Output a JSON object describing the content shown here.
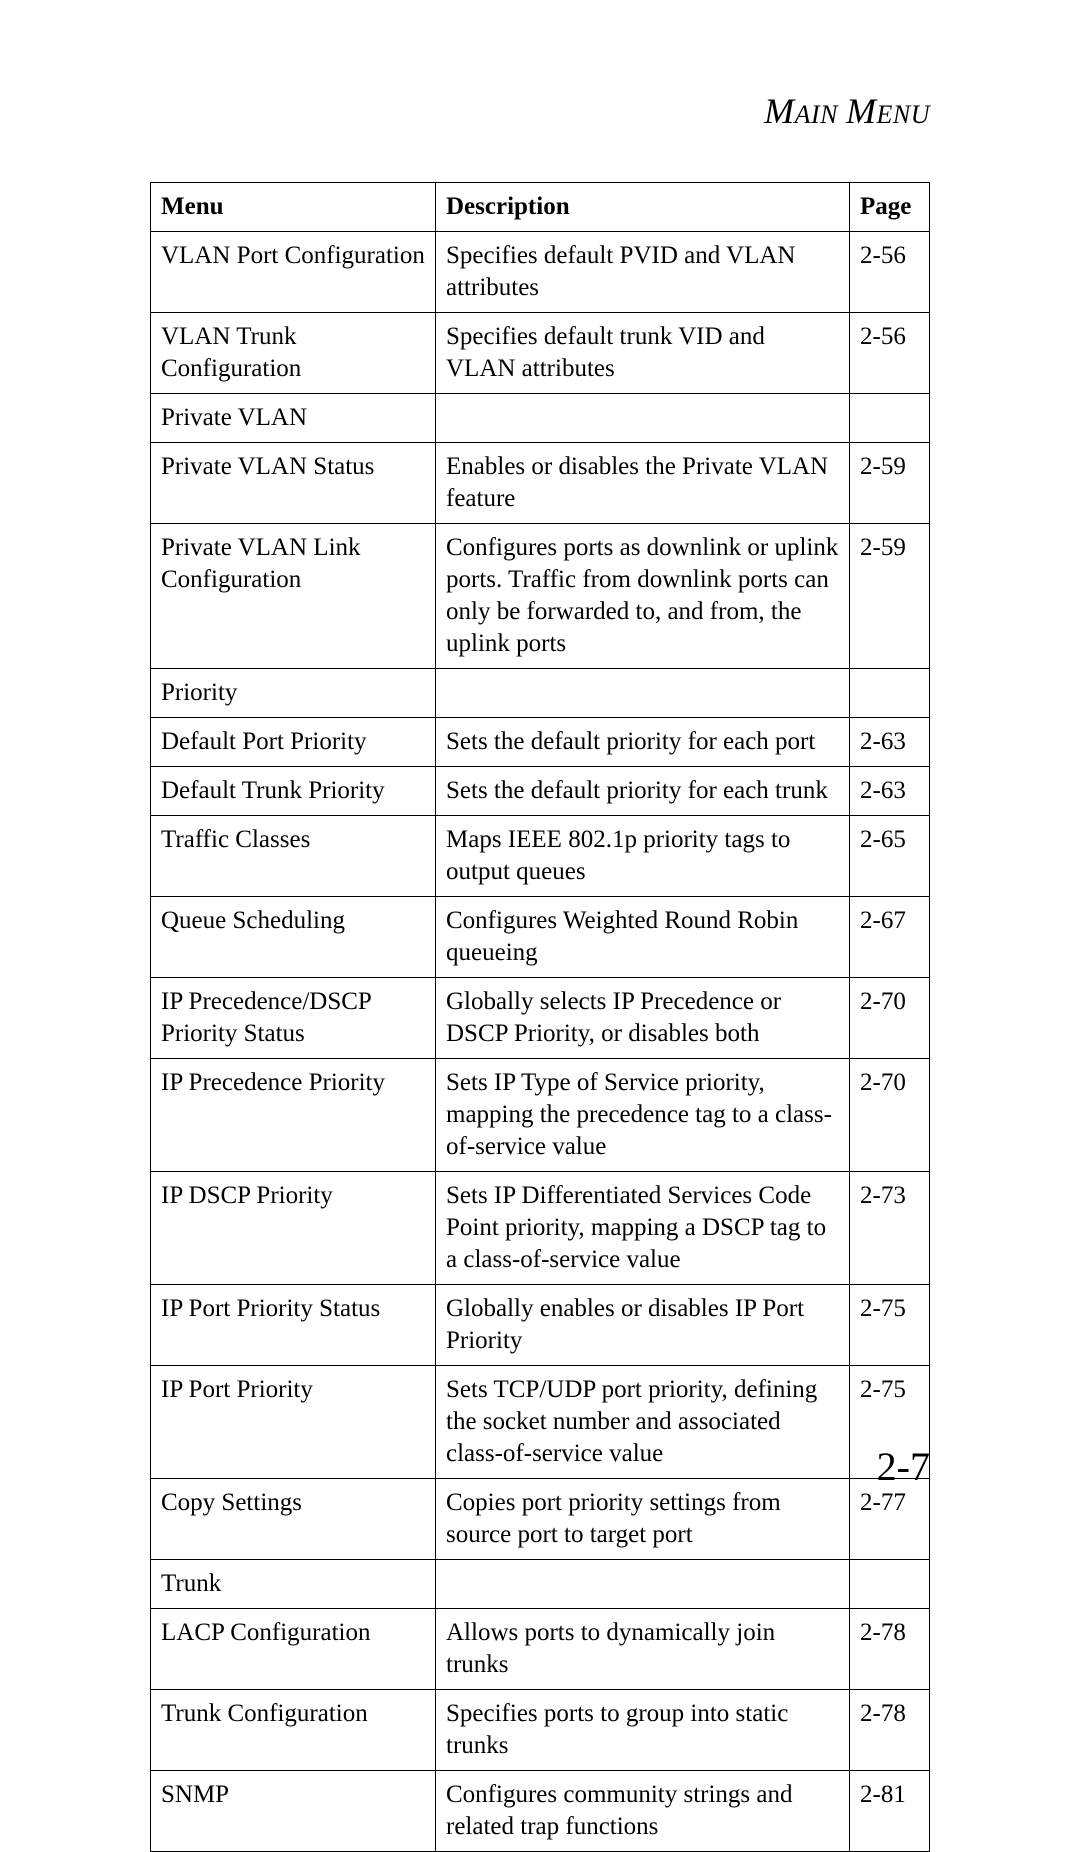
{
  "header_title_word1": "Main",
  "header_title_word2": "Menu",
  "footer_page": "2-7",
  "col_menu": "Menu",
  "col_desc": "Description",
  "col_page": "Page",
  "rows": [
    {
      "menu": "VLAN Port Configuration",
      "indent": 1,
      "desc": "Specifies default PVID and VLAN attributes",
      "page": "2-56"
    },
    {
      "menu": "VLAN Trunk Configuration",
      "indent": 1,
      "desc": "Specifies default trunk VID and VLAN attributes",
      "page": "2-56"
    },
    {
      "menu": "Private VLAN",
      "indent": 0,
      "desc": "",
      "page": ""
    },
    {
      "menu": "Private VLAN Status",
      "indent": 1,
      "desc": "Enables or disables the Private VLAN feature",
      "page": "2-59"
    },
    {
      "menu": "Private VLAN Link Configuration",
      "indent": 1,
      "desc": "Configures ports as downlink or uplink ports. Traffic from downlink ports can only be forwarded to, and from, the uplink ports",
      "page": "2-59"
    },
    {
      "menu": "Priority",
      "indent": 0,
      "desc": "",
      "page": ""
    },
    {
      "menu": "Default Port Priority",
      "indent": 1,
      "desc": "Sets the default priority for each port",
      "page": "2-63"
    },
    {
      "menu": "Default Trunk Priority",
      "indent": 1,
      "desc": "Sets the default priority for each trunk",
      "page": "2-63"
    },
    {
      "menu": "Traffic Classes",
      "indent": 1,
      "desc": "Maps IEEE 802.1p priority tags to output queues",
      "page": "2-65"
    },
    {
      "menu": "Queue Scheduling",
      "indent": 1,
      "desc": "Configures Weighted Round Robin queueing",
      "page": "2-67"
    },
    {
      "menu": "IP Precedence/DSCP Priority Status",
      "indent": 1,
      "desc": "Globally selects IP Precedence or DSCP Priority, or disables both",
      "page": "2-70"
    },
    {
      "menu": "IP Precedence Priority",
      "indent": 1,
      "desc": "Sets IP Type of Service priority, mapping the precedence tag to a class-of-service value",
      "page": "2-70"
    },
    {
      "menu": "IP DSCP Priority",
      "indent": 1,
      "desc": "Sets IP Differentiated Services Code Point priority, mapping a DSCP tag to a class-of-service value",
      "page": "2-73"
    },
    {
      "menu": "IP Port Priority Status",
      "indent": 1,
      "desc": "Globally enables or disables IP Port Priority",
      "page": "2-75"
    },
    {
      "menu": "IP Port Priority",
      "indent": 1,
      "desc": "Sets TCP/UDP port priority, defining the socket number and associated class-of-service value",
      "page": "2-75"
    },
    {
      "menu": "Copy Settings",
      "indent": 1,
      "desc": "Copies port priority settings from source port to target port",
      "page": "2-77"
    },
    {
      "menu": "Trunk",
      "indent": 0,
      "desc": "",
      "page": ""
    },
    {
      "menu": "LACP Configuration",
      "indent": 1,
      "desc": "Allows ports to dynamically join trunks",
      "page": "2-78"
    },
    {
      "menu": "Trunk Configuration",
      "indent": 1,
      "desc": "Specifies ports to group into static trunks",
      "page": "2-78"
    },
    {
      "menu": "SNMP",
      "indent": 0,
      "desc": "Configures community strings and related trap functions",
      "page": "2-81"
    }
  ]
}
